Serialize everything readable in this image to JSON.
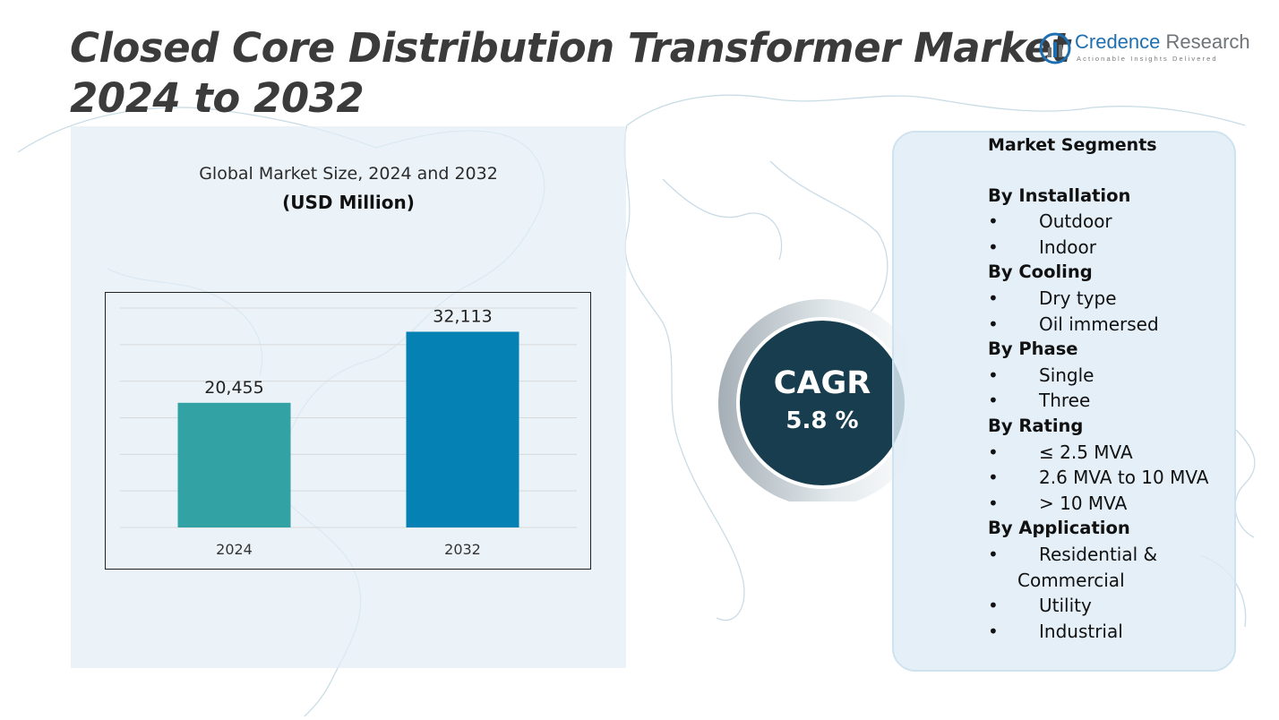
{
  "header": {
    "title_line1": "Closed Core Distribution Transformer Market",
    "title_line2": "2024 to 2032"
  },
  "logo": {
    "brand": "Credence",
    "name": " Research",
    "tagline": "Actionable Insights Delivered",
    "icon": "bar-chart-circle-icon"
  },
  "chart_data": {
    "type": "bar",
    "title": "Global Market Size, 2024 and 2032",
    "ylabel": "(USD Million)",
    "categories": [
      "2024",
      "2032"
    ],
    "values": [
      20455,
      32113
    ],
    "value_labels": [
      "20,455",
      "32,113"
    ],
    "colors": [
      "#32a2a4",
      "#0681b4"
    ],
    "ylim": [
      0,
      36000
    ],
    "grid": true,
    "gridline_interval": 6000
  },
  "cagr": {
    "label": "CAGR",
    "value": "5.8 %",
    "color": "#173d4e"
  },
  "segments": {
    "title": "Market Segments",
    "groups": [
      {
        "heading": "By Installation",
        "items": [
          "Outdoor",
          "Indoor"
        ]
      },
      {
        "heading": "By Cooling",
        "items": [
          "Dry type",
          "Oil immersed"
        ]
      },
      {
        "heading": "By Phase",
        "items": [
          "Single",
          "Three"
        ]
      },
      {
        "heading": "By Rating",
        "items": [
          "≤ 2.5 MVA",
          "2.6 MVA to 10 MVA",
          "> 10 MVA"
        ]
      },
      {
        "heading": "By Application",
        "items": [
          "Residential & Commercial",
          "Utility",
          "Industrial"
        ]
      }
    ]
  }
}
